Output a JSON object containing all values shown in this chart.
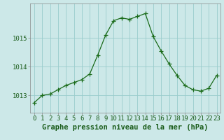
{
  "x": [
    0,
    1,
    2,
    3,
    4,
    5,
    6,
    7,
    8,
    9,
    10,
    11,
    12,
    13,
    14,
    15,
    16,
    17,
    18,
    19,
    20,
    21,
    22,
    23
  ],
  "y": [
    1012.75,
    1013.0,
    1013.05,
    1013.2,
    1013.35,
    1013.45,
    1013.55,
    1013.75,
    1014.4,
    1015.1,
    1015.6,
    1015.7,
    1015.65,
    1015.75,
    1015.85,
    1015.05,
    1014.55,
    1014.1,
    1013.7,
    1013.35,
    1013.2,
    1013.15,
    1013.25,
    1013.7
  ],
  "line_color": "#1a6b1a",
  "marker_color": "#1a6b1a",
  "bg_color": "#cce8e8",
  "grid_color": "#99cccc",
  "xlabel": "Graphe pression niveau de la mer (hPa)",
  "yticks": [
    1013,
    1014,
    1015
  ],
  "xticks": [
    0,
    1,
    2,
    3,
    4,
    5,
    6,
    7,
    8,
    9,
    10,
    11,
    12,
    13,
    14,
    15,
    16,
    17,
    18,
    19,
    20,
    21,
    22,
    23
  ],
  "xlim": [
    -0.5,
    23.5
  ],
  "ylim": [
    1012.4,
    1016.2
  ],
  "xlabel_fontsize": 7.5,
  "tick_fontsize": 6.5,
  "tick_color": "#1a5c1a",
  "label_color": "#1a5c1a",
  "spine_color": "#888888"
}
